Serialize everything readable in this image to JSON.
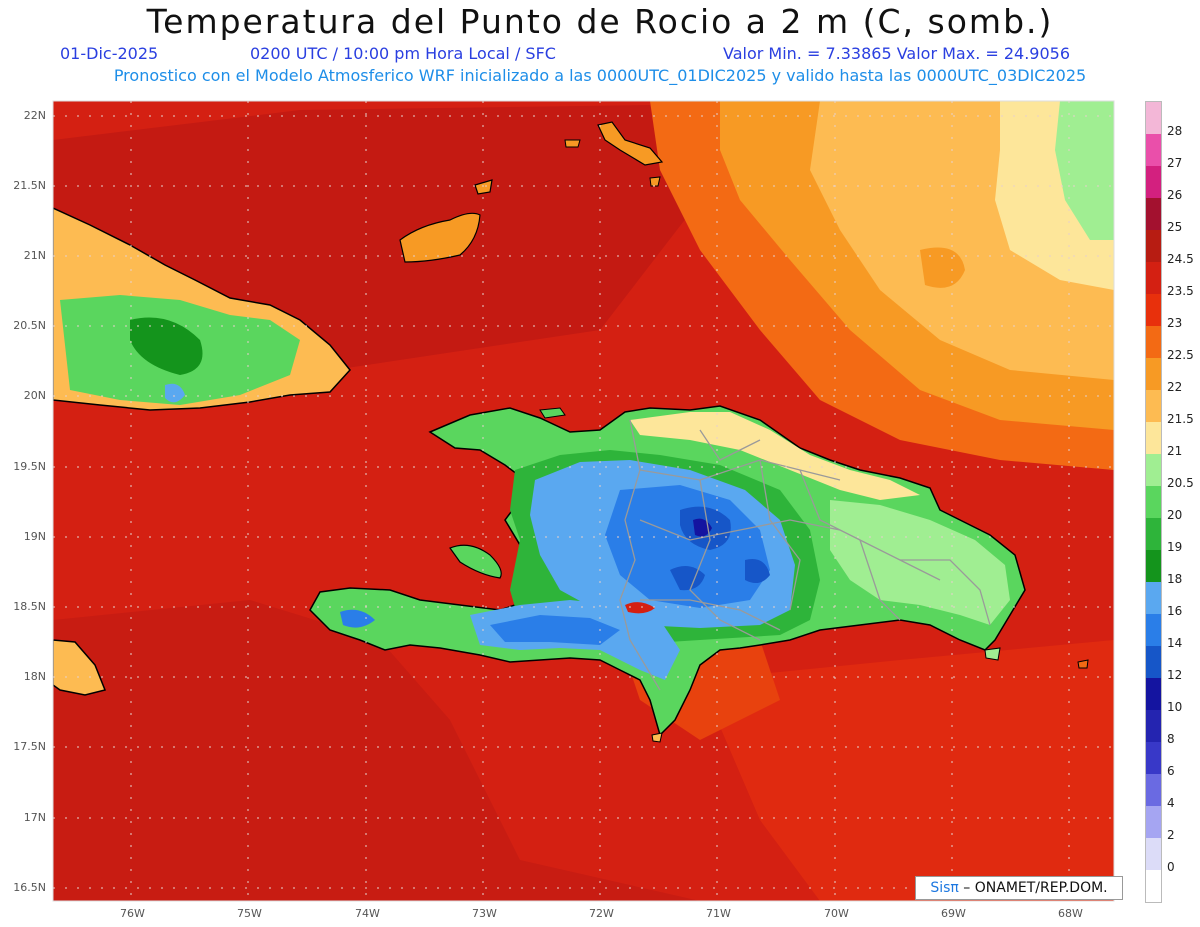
{
  "title": "Temperatura del Punto de Rocio a 2 m (C, somb.)",
  "date": "01-Dic-2025",
  "time": "0200 UTC / 10:00 pm Hora Local / SFC",
  "minmax": "Valor Min. = 7.33865  Valor Max. = 24.9056",
  "model_info": "Pronostico con el Modelo Atmosferico WRF inicializado a las 0000UTC_01DIC2025 y valido hasta las  0000UTC_03DIC2025",
  "credit": {
    "sis": "Sisπ",
    "rest": " – ONAMET/REP.DOM."
  },
  "lat_ticks": [
    "22N",
    "21.5N",
    "21N",
    "20.5N",
    "20N",
    "19.5N",
    "19N",
    "18.5N",
    "18N",
    "17.5N",
    "17N",
    "16.5N"
  ],
  "lon_ticks": [
    "76W",
    "75W",
    "74W",
    "73W",
    "72W",
    "71W",
    "70W",
    "69W",
    "68W"
  ],
  "colorbar": {
    "labels": [
      "28",
      "27",
      "26",
      "25",
      "24.5",
      "23.5",
      "23",
      "22.5",
      "22",
      "21.5",
      "21",
      "20.5",
      "20",
      "19",
      "18",
      "16",
      "14",
      "12",
      "10",
      "8",
      "6",
      "4",
      "2",
      "0"
    ],
    "colors": [
      "#f3b7d7",
      "#ea4faa",
      "#d3207f",
      "#a3112f",
      "#b71c12",
      "#d42012",
      "#e8300c",
      "#f36a14",
      "#f79a24",
      "#fdbb52",
      "#fde69a",
      "#a0ee92",
      "#5ad65e",
      "#2eb43a",
      "#14941c",
      "#5aa8f0",
      "#2a7ee8",
      "#1656c8",
      "#1414a0",
      "#2424b0",
      "#3838c8",
      "#6a6ae2",
      "#a5a5f2",
      "#dcdcf8",
      "#ffffff"
    ]
  },
  "colors": {
    "background": "#d42012",
    "border": "#000000",
    "political": "#9a9a9a",
    "grid": "#d9d9d9"
  }
}
